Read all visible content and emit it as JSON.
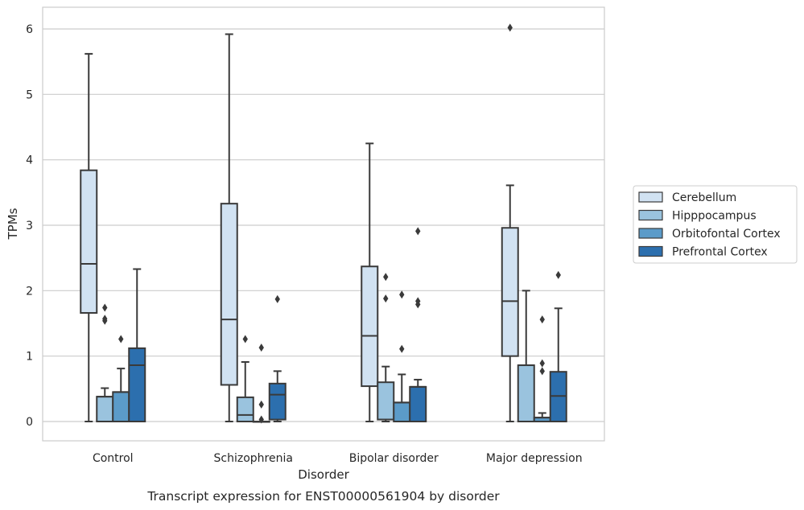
{
  "chart_data": {
    "type": "box",
    "caption": "Transcript expression for ENST00000561904 by disorder",
    "xlabel": "Disorder",
    "ylabel": "TPMs",
    "ylim": [
      -0.3,
      6.3
    ],
    "yticks": [
      0,
      1,
      2,
      3,
      4,
      5,
      6
    ],
    "grid": "horizontal",
    "legend_position": "right",
    "categories": [
      "Control",
      "Schizophrenia",
      "Bipolar disorder",
      "Major depression"
    ],
    "series": [
      {
        "name": "Cerebellum",
        "color": "#d1e2f2",
        "boxes": [
          {
            "whislo": 0,
            "q1": 1.66,
            "med": 2.41,
            "q3": 3.84,
            "whishi": 5.62,
            "fliers": []
          },
          {
            "whislo": 0,
            "q1": 0.56,
            "med": 1.56,
            "q3": 3.33,
            "whishi": 5.92,
            "fliers": []
          },
          {
            "whislo": 0,
            "q1": 0.54,
            "med": 1.31,
            "q3": 2.37,
            "whishi": 4.25,
            "fliers": []
          },
          {
            "whislo": 0,
            "q1": 1.0,
            "med": 1.84,
            "q3": 2.96,
            "whishi": 3.61,
            "fliers": [
              6.02
            ]
          }
        ]
      },
      {
        "name": "Hipppocampus",
        "color": "#9ac3de",
        "boxes": [
          {
            "whislo": 0,
            "q1": 0,
            "med": 0.38,
            "q3": 0.38,
            "whishi": 0.51,
            "fliers": [
              1.74,
              1.57,
              1.54
            ]
          },
          {
            "whislo": 0,
            "q1": 0,
            "med": 0.1,
            "q3": 0.37,
            "whishi": 0.91,
            "fliers": [
              1.26
            ]
          },
          {
            "whislo": 0,
            "q1": 0.03,
            "med": 0.03,
            "q3": 0.6,
            "whishi": 0.84,
            "fliers": [
              2.21,
              1.88
            ]
          },
          {
            "whislo": 0,
            "q1": 0,
            "med": 0.86,
            "q3": 0.86,
            "whishi": 2.0,
            "fliers": []
          }
        ]
      },
      {
        "name": "Orbitofontal Cortex",
        "color": "#5b9bc9",
        "boxes": [
          {
            "whislo": 0,
            "q1": 0,
            "med": 0.45,
            "q3": 0.45,
            "whishi": 0.81,
            "fliers": [
              1.26
            ]
          },
          {
            "whislo": 0,
            "q1": 0,
            "med": 0,
            "q3": 0,
            "whishi": 0,
            "fliers": [
              1.13,
              0.26,
              0.03
            ]
          },
          {
            "whislo": 0,
            "q1": 0,
            "med": 0.29,
            "q3": 0.29,
            "whishi": 0.72,
            "fliers": [
              1.94,
              1.11
            ]
          },
          {
            "whislo": 0,
            "q1": 0,
            "med": 0.06,
            "q3": 0.06,
            "whishi": 0.13,
            "fliers": [
              1.56,
              0.89,
              0.77
            ]
          }
        ]
      },
      {
        "name": "Prefrontal Cortex",
        "color": "#2c6fae",
        "boxes": [
          {
            "whislo": 0,
            "q1": 0,
            "med": 0.86,
            "q3": 1.12,
            "whishi": 2.33,
            "fliers": []
          },
          {
            "whislo": 0,
            "q1": 0.03,
            "med": 0.41,
            "q3": 0.58,
            "whishi": 0.77,
            "fliers": [
              1.87
            ]
          },
          {
            "whislo": 0,
            "q1": 0,
            "med": 0.53,
            "q3": 0.53,
            "whishi": 0.64,
            "fliers": [
              2.91,
              1.84,
              1.79
            ]
          },
          {
            "whislo": 0,
            "q1": 0,
            "med": 0.39,
            "q3": 0.76,
            "whishi": 1.73,
            "fliers": [
              2.24
            ]
          }
        ]
      }
    ]
  }
}
